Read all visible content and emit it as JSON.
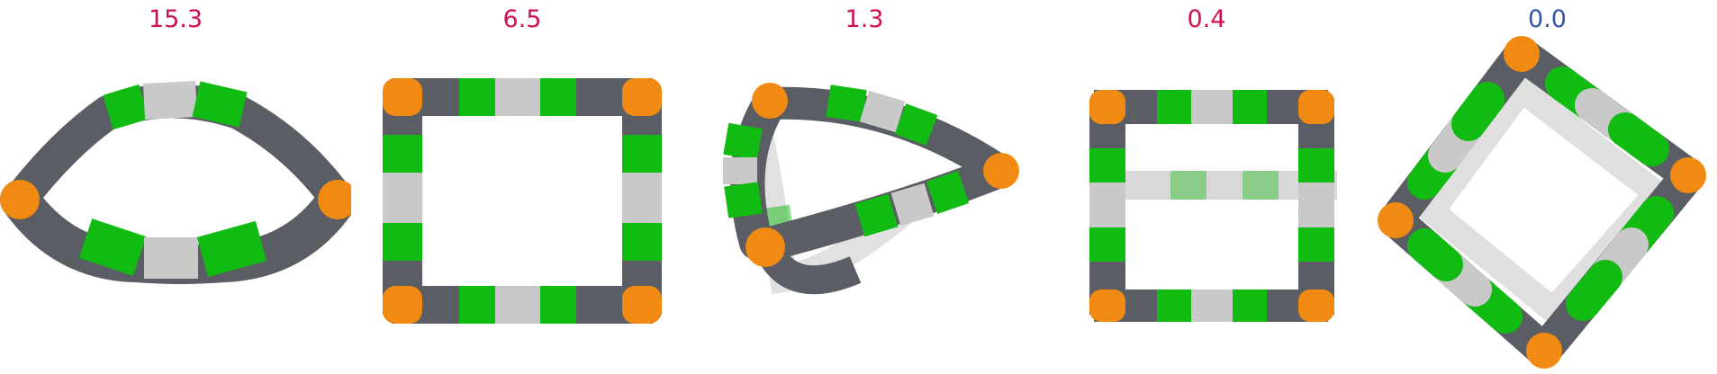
{
  "panels": [
    {
      "label": "15.3",
      "label_color": "#cc1155",
      "shape": "flattened-ring"
    },
    {
      "label": "6.5",
      "label_color": "#cc1155",
      "shape": "square-frame"
    },
    {
      "label": "1.3",
      "label_color": "#cc1155",
      "shape": "twisted-loop"
    },
    {
      "label": "0.4",
      "label_color": "#cc1155",
      "shape": "box-frame"
    },
    {
      "label": "0.0",
      "label_color": "#3355aa",
      "shape": "tilted-cube-frame"
    }
  ],
  "colors": {
    "green": "#11bb11",
    "gray": "#5a5d63",
    "light": "#c9c9c9",
    "orange": "#f08a12"
  }
}
